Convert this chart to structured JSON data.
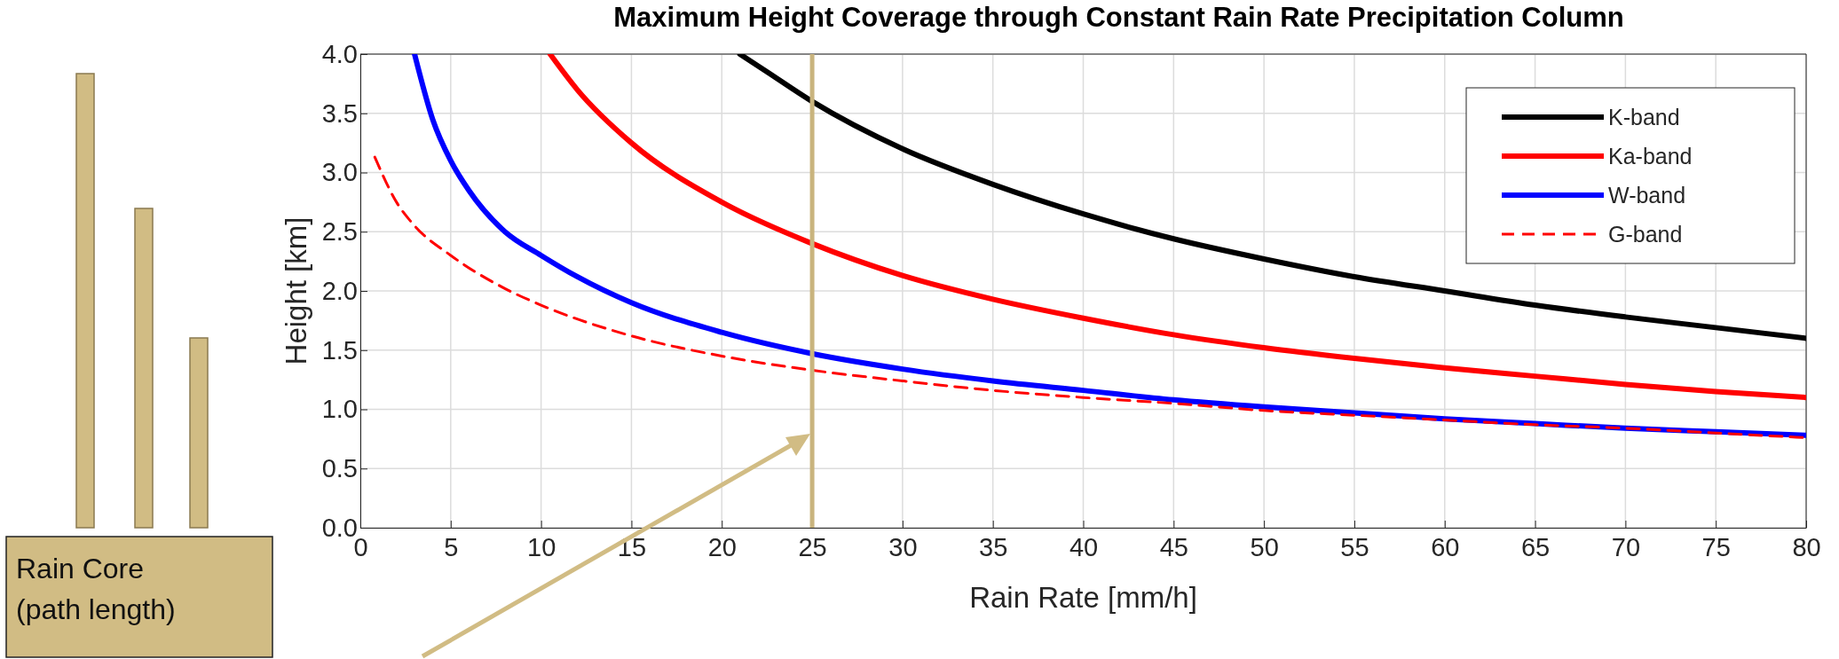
{
  "chart_data": {
    "type": "line",
    "title": "Maximum Height Coverage through Constant Rain Rate Precipitation Column",
    "xlabel": "Rain Rate [mm/h]",
    "ylabel": "Height [km]",
    "xlim": [
      0,
      80
    ],
    "xticks": [
      0,
      5,
      10,
      15,
      20,
      25,
      30,
      35,
      40,
      45,
      50,
      55,
      60,
      65,
      70,
      75,
      80
    ],
    "ylim": [
      0,
      4
    ],
    "yticks": [
      {
        "value": 0,
        "label": "0.0"
      },
      {
        "value": 0.5,
        "label": "0.5"
      },
      {
        "value": 1,
        "label": "1.0"
      },
      {
        "value": 1.5,
        "label": "1.5"
      },
      {
        "value": 2,
        "label": "2.0"
      },
      {
        "value": 2.5,
        "label": "2.5"
      },
      {
        "value": 3,
        "label": "3.0"
      },
      {
        "value": 3.5,
        "label": "3.5"
      },
      {
        "value": 4,
        "label": "4.0"
      }
    ],
    "grid": true,
    "legend": "top right",
    "series": [
      {
        "name": "K-band",
        "color": "#000000",
        "line_style": "solid",
        "x": [
          21,
          22.5,
          25,
          30,
          35,
          40,
          45,
          50,
          55,
          60,
          65,
          70,
          75,
          80
        ],
        "values": [
          4.0,
          3.85,
          3.6,
          3.2,
          2.9,
          2.65,
          2.44,
          2.27,
          2.12,
          2.0,
          1.88,
          1.78,
          1.69,
          1.6
        ]
      },
      {
        "name": "Ka-band",
        "color": "#ff0000",
        "line_style": "solid",
        "x": [
          10.5,
          12,
          15,
          20,
          25,
          30,
          35,
          40,
          45,
          50,
          55,
          60,
          65,
          70,
          75,
          80
        ],
        "values": [
          4.0,
          3.7,
          3.25,
          2.75,
          2.4,
          2.13,
          1.93,
          1.77,
          1.63,
          1.52,
          1.43,
          1.35,
          1.28,
          1.21,
          1.15,
          1.1
        ]
      },
      {
        "name": "W-band",
        "color": "#0000ff",
        "line_style": "solid",
        "x": [
          3,
          4,
          5,
          6,
          8,
          10,
          12,
          15,
          20,
          25,
          30,
          35,
          40,
          45,
          50,
          55,
          60,
          65,
          70,
          75,
          80
        ],
        "values": [
          4.0,
          3.45,
          3.1,
          2.85,
          2.5,
          2.3,
          2.12,
          1.9,
          1.65,
          1.47,
          1.34,
          1.24,
          1.16,
          1.08,
          1.02,
          0.97,
          0.92,
          0.88,
          0.84,
          0.81,
          0.78
        ]
      },
      {
        "name": "G-band",
        "color": "#ff0000",
        "line_style": "dashed",
        "x": [
          0.8,
          2,
          3,
          5,
          8,
          10,
          15,
          20,
          25,
          30,
          35,
          40,
          45,
          50,
          55,
          60,
          65,
          70,
          75,
          80
        ],
        "values": [
          3.13,
          2.75,
          2.55,
          2.3,
          2.02,
          1.88,
          1.62,
          1.45,
          1.33,
          1.24,
          1.16,
          1.1,
          1.05,
          0.99,
          0.95,
          0.91,
          0.87,
          0.84,
          0.8,
          0.76
        ]
      }
    ],
    "ref_lines": [
      {
        "axis": "x",
        "value": 25,
        "color": "#c9b47e"
      }
    ],
    "annotations": [
      "Rain Core\n(path length)"
    ]
  }
}
